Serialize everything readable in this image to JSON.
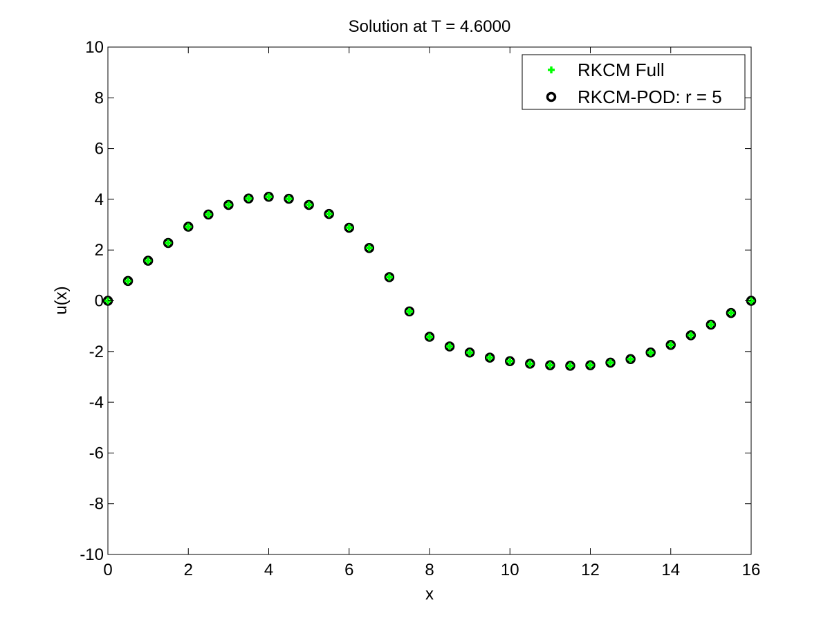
{
  "chart_data": {
    "type": "scatter",
    "title": "Solution at T = 4.6000",
    "xlabel": "x",
    "ylabel": "u(x)",
    "xlim": [
      0,
      16
    ],
    "ylim": [
      -10,
      10
    ],
    "xticks": [
      0,
      2,
      4,
      6,
      8,
      10,
      12,
      14,
      16
    ],
    "yticks": [
      -10,
      -8,
      -6,
      -4,
      -2,
      0,
      2,
      4,
      6,
      8,
      10
    ],
    "grid": false,
    "legend_position": "top-right",
    "x": [
      0,
      0.5,
      1,
      1.5,
      2,
      2.5,
      3,
      3.5,
      4,
      4.5,
      5,
      5.5,
      6,
      6.5,
      7,
      7.5,
      8,
      8.5,
      9,
      9.5,
      10,
      10.5,
      11,
      11.5,
      12,
      12.5,
      13,
      13.5,
      14,
      14.5,
      15,
      15.5,
      16
    ],
    "series": [
      {
        "name": "RKCM Full",
        "marker": "plus",
        "color": "#00ff00",
        "values": [
          0,
          0.78,
          1.58,
          2.28,
          2.92,
          3.4,
          3.78,
          4.03,
          4.1,
          4.02,
          3.78,
          3.42,
          2.88,
          2.08,
          0.93,
          -0.42,
          -1.42,
          -1.8,
          -2.04,
          -2.24,
          -2.38,
          -2.48,
          -2.54,
          -2.56,
          -2.54,
          -2.44,
          -2.3,
          -2.04,
          -1.74,
          -1.36,
          -0.94,
          -0.48,
          0
        ]
      },
      {
        "name": "RKCM-POD: r = 5",
        "marker": "circle",
        "color": "#000000",
        "values": [
          0,
          0.78,
          1.58,
          2.28,
          2.92,
          3.4,
          3.78,
          4.03,
          4.1,
          4.02,
          3.78,
          3.42,
          2.88,
          2.08,
          0.93,
          -0.42,
          -1.42,
          -1.8,
          -2.04,
          -2.24,
          -2.38,
          -2.48,
          -2.54,
          -2.56,
          -2.54,
          -2.44,
          -2.3,
          -2.04,
          -1.74,
          -1.36,
          -0.94,
          -0.48,
          0
        ]
      }
    ]
  }
}
